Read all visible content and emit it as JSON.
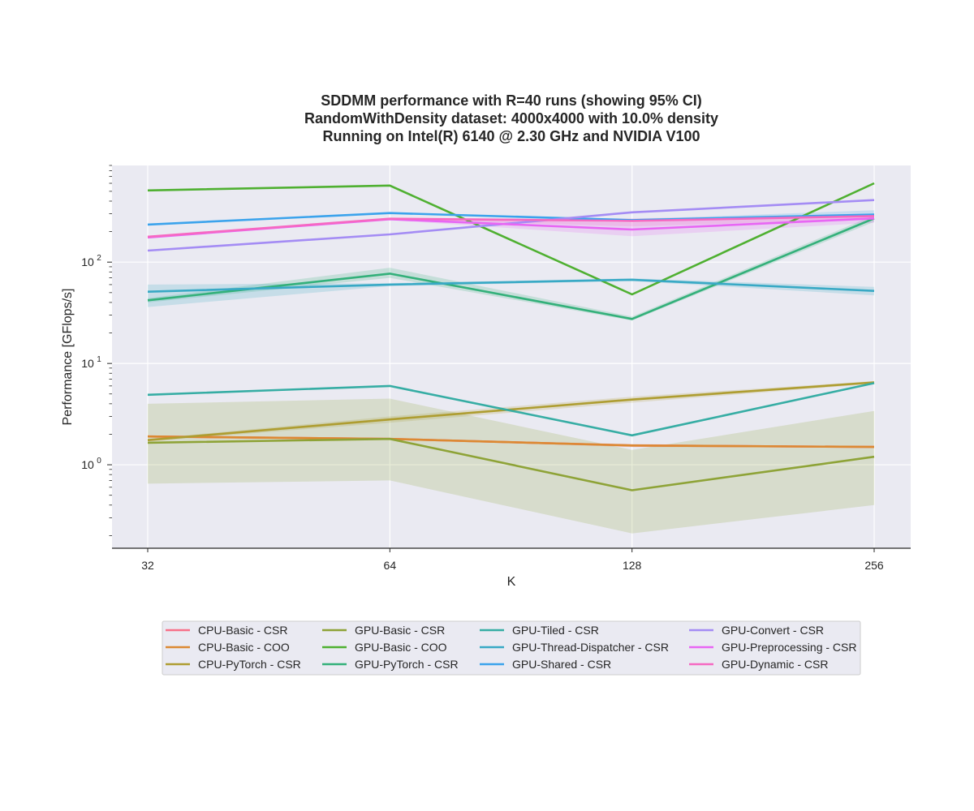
{
  "chart_data": {
    "type": "line",
    "title_lines": [
      "SDDMM performance with R=40 runs (showing 95% CI)",
      "RandomWithDensity dataset: 4000x4000 with 10.0% density",
      "Running on Intel(R) 6140 @ 2.30 GHz and NVIDIA V100"
    ],
    "xlabel": "K",
    "ylabel": "Performance [GFlops/s]",
    "x_scale": "log2",
    "y_scale": "log10",
    "x": [
      32,
      64,
      128,
      256
    ],
    "x_tick_labels": [
      "32",
      "64",
      "128",
      "256"
    ],
    "ylim": [
      0.15,
      900
    ],
    "y_major_ticks": [
      {
        "value": 1,
        "base": "10",
        "exp": "0"
      },
      {
        "value": 10,
        "base": "10",
        "exp": "1"
      },
      {
        "value": 100,
        "base": "10",
        "exp": "2"
      }
    ],
    "background": "#eaeaf2",
    "grid": true,
    "legend_position": "bottom-center",
    "legend_columns": 4,
    "series": [
      {
        "name": "CPU-Basic - CSR",
        "color": "#f77189",
        "values": [
          1.9,
          1.8,
          1.55,
          1.5
        ],
        "ci_low": [
          1.88,
          1.78,
          1.5,
          1.48
        ],
        "ci_high": [
          1.92,
          1.82,
          1.6,
          1.52
        ]
      },
      {
        "name": "CPU-Basic - COO",
        "color": "#dc8932",
        "values": [
          1.9,
          1.8,
          1.55,
          1.5
        ],
        "ci_low": [
          1.88,
          1.78,
          1.5,
          1.48
        ],
        "ci_high": [
          1.92,
          1.82,
          1.6,
          1.52
        ]
      },
      {
        "name": "CPU-PyTorch - CSR",
        "color": "#ae9d31",
        "values": [
          1.75,
          2.8,
          4.4,
          6.5
        ],
        "ci_low": [
          1.7,
          2.6,
          4.1,
          6.3
        ],
        "ci_high": [
          1.8,
          3.0,
          4.7,
          6.7
        ]
      },
      {
        "name": "GPU-Basic - CSR",
        "color": "#8ea337",
        "values": [
          1.65,
          1.8,
          0.56,
          1.2
        ],
        "ci_low": [
          0.65,
          0.7,
          0.21,
          0.4
        ],
        "ci_high": [
          4.0,
          4.5,
          1.4,
          3.4
        ]
      },
      {
        "name": "GPU-Basic - COO",
        "color": "#4fb031",
        "values": [
          510,
          570,
          48,
          600
        ],
        "ci_low": [
          505,
          565,
          47,
          595
        ],
        "ci_high": [
          515,
          575,
          49,
          605
        ]
      },
      {
        "name": "GPU-PyTorch - CSR",
        "color": "#33b07a",
        "values": [
          42,
          77,
          27.5,
          270
        ],
        "ci_low": [
          40,
          70,
          26.5,
          250
        ],
        "ci_high": [
          44,
          88,
          29,
          290
        ]
      },
      {
        "name": "GPU-Tiled - CSR",
        "color": "#36ada4",
        "values": [
          4.9,
          6.0,
          1.95,
          6.4
        ],
        "ci_low": [
          4.85,
          5.95,
          1.9,
          6.3
        ],
        "ci_high": [
          4.95,
          6.05,
          2.0,
          6.5
        ]
      },
      {
        "name": "GPU-Thread-Dispatcher - CSR",
        "color": "#38a9c5",
        "values": [
          51,
          60,
          67,
          52
        ],
        "ci_low": [
          36,
          58,
          65,
          47
        ],
        "ci_high": [
          60,
          62,
          69,
          57
        ]
      },
      {
        "name": "GPU-Shared - CSR",
        "color": "#3ba3ec",
        "values": [
          235,
          305,
          260,
          295
        ],
        "ci_low": [
          232,
          300,
          255,
          285
        ],
        "ci_high": [
          238,
          310,
          265,
          325
        ]
      },
      {
        "name": "GPU-Convert - CSR",
        "color": "#a48cf4",
        "values": [
          130,
          188,
          310,
          410
        ],
        "ci_low": [
          128,
          185,
          305,
          405
        ],
        "ci_high": [
          132,
          191,
          315,
          415
        ]
      },
      {
        "name": "GPU-Preprocessing - CSR",
        "color": "#e866f4",
        "values": [
          175,
          265,
          210,
          270
        ],
        "ci_low": [
          172,
          260,
          180,
          245
        ],
        "ci_high": [
          178,
          270,
          245,
          295
        ]
      },
      {
        "name": "GPU-Dynamic - CSR",
        "color": "#f668c2",
        "values": [
          178,
          268,
          255,
          285
        ],
        "ci_low": [
          176,
          265,
          225,
          265
        ],
        "ci_high": [
          180,
          271,
          270,
          300
        ]
      }
    ]
  }
}
